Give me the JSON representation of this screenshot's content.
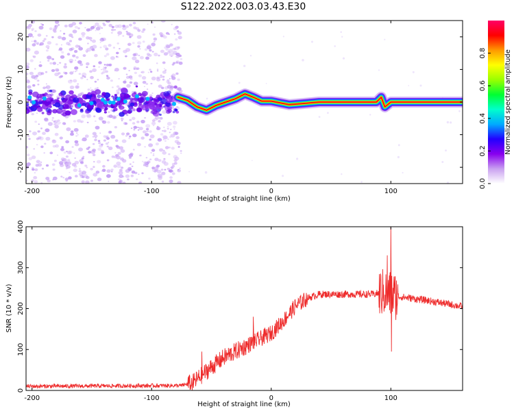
{
  "title": "S122.2022.003.03.43.E30",
  "colors": {
    "spectrum": "#8800ee",
    "snr_line": "#ee2b2b",
    "axis": "#000000"
  },
  "chart_data": [
    {
      "type": "heatmap",
      "name": "spectrogram",
      "xlabel": "Height of straight line (km)",
      "ylabel": "Frequency (Hz)",
      "xlim": [
        -205,
        160
      ],
      "ylim": [
        -25,
        25
      ],
      "xticks": [
        "-200",
        "-100",
        "0",
        "100"
      ],
      "yticks": [
        "-20",
        "-10",
        "0",
        "10",
        "20"
      ],
      "ridge": [
        {
          "x": -78,
          "y": 1.5
        },
        {
          "x": -70,
          "y": 0.5
        },
        {
          "x": -62,
          "y": -1.5
        },
        {
          "x": -54,
          "y": -2.5
        },
        {
          "x": -46,
          "y": -1.0
        },
        {
          "x": -38,
          "y": 0.0
        },
        {
          "x": -30,
          "y": 1.0
        },
        {
          "x": -22,
          "y": 2.5
        },
        {
          "x": -15,
          "y": 1.5
        },
        {
          "x": -8,
          "y": 0.3
        },
        {
          "x": 0,
          "y": 0.3
        },
        {
          "x": 8,
          "y": -0.3
        },
        {
          "x": 15,
          "y": -0.8
        },
        {
          "x": 25,
          "y": -0.5
        },
        {
          "x": 40,
          "y": 0.0
        },
        {
          "x": 88,
          "y": 0.0
        },
        {
          "x": 92,
          "y": 1.5
        },
        {
          "x": 95,
          "y": -1.5
        },
        {
          "x": 100,
          "y": 0.0
        },
        {
          "x": 160,
          "y": 0.0
        }
      ],
      "colorbar": {
        "label": "Normalized spectral amplitude",
        "range": [
          0,
          1
        ],
        "ticks": [
          "0.0",
          "0.2",
          "0.4",
          "0.6",
          "0.8"
        ],
        "stops": [
          "#ffffff",
          "#c9a0f0",
          "#8800ee",
          "#2200ff",
          "#00aaff",
          "#00ffcc",
          "#00ff33",
          "#99ff00",
          "#ffff00",
          "#ff9900",
          "#ff0000",
          "#ff0066"
        ]
      }
    },
    {
      "type": "line",
      "name": "snr",
      "xlabel": "Height of straight line (km)",
      "ylabel": "SNR (10 * v/v)",
      "xlim": [
        -205,
        160
      ],
      "ylim": [
        0,
        400
      ],
      "xticks": [
        "-200",
        "-100",
        "0",
        "100"
      ],
      "yticks": [
        "0",
        "100",
        "200",
        "300",
        "400"
      ],
      "trend": {
        "x": [
          -205,
          -75,
          -65,
          -55,
          -40,
          -20,
          0,
          10,
          20,
          30,
          40,
          85,
          95,
          105,
          130,
          160
        ],
        "y": [
          10,
          12,
          20,
          45,
          80,
          110,
          140,
          170,
          205,
          225,
          235,
          235,
          240,
          230,
          220,
          205
        ]
      },
      "spikes": [
        {
          "x": 97,
          "y": 330
        },
        {
          "x": 100,
          "y": 400
        },
        {
          "x": 100.5,
          "y": 95
        },
        {
          "x": -58,
          "y": 95
        },
        {
          "x": -15,
          "y": 180
        }
      ]
    }
  ]
}
